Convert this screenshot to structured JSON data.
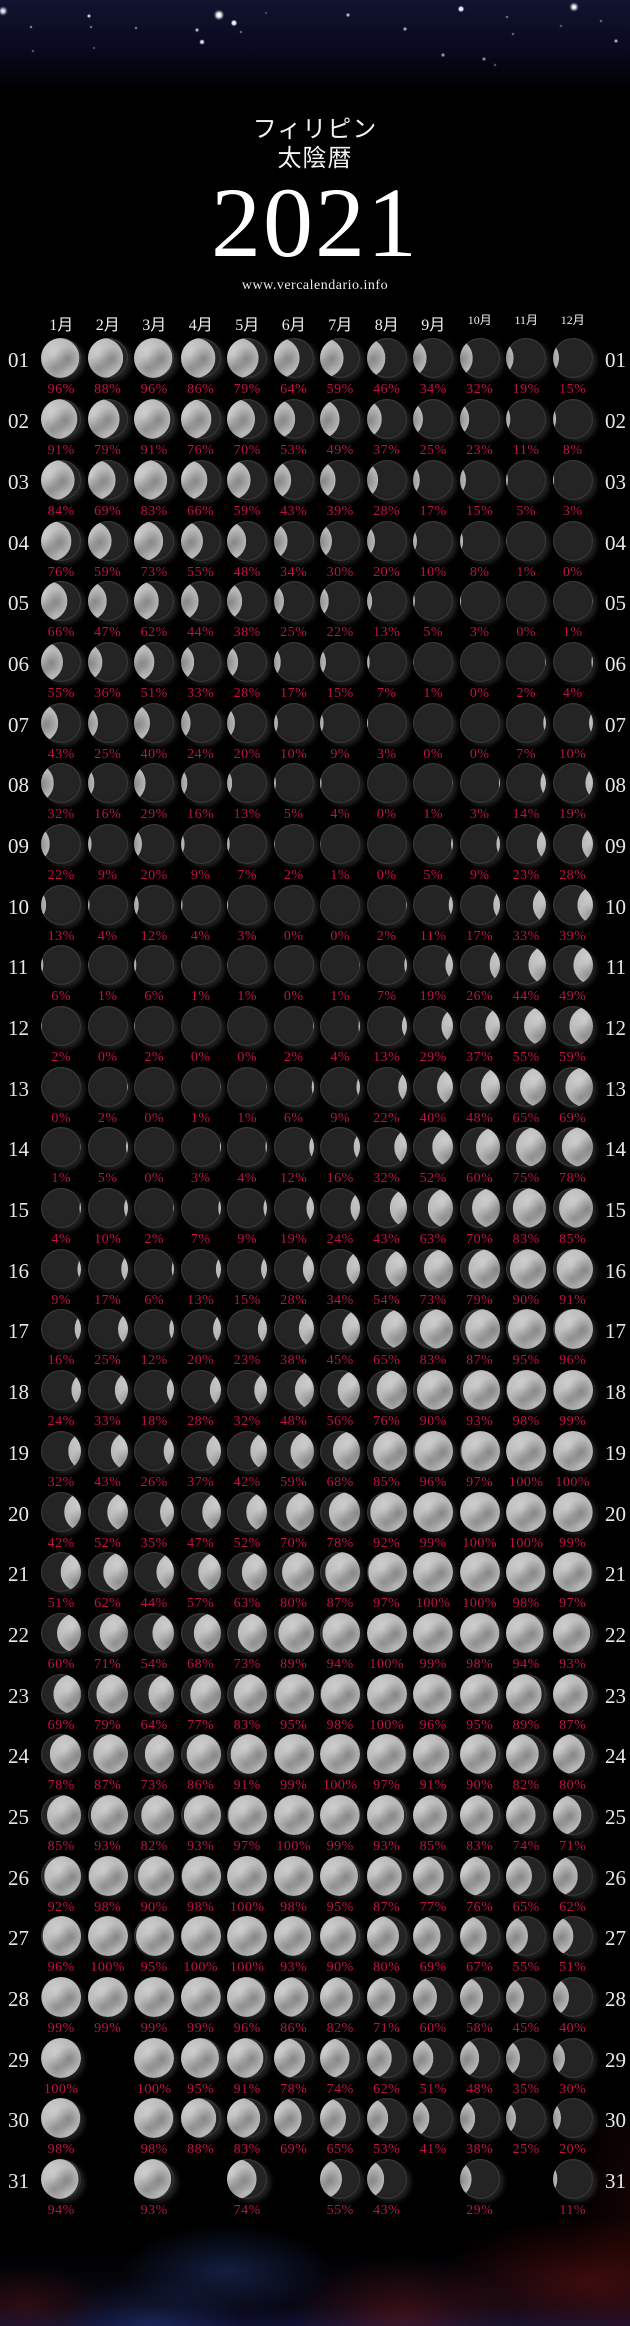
{
  "header": {
    "title_line1": "フィリピン",
    "title_line2": "太陰暦",
    "year": "2021",
    "website": "www.vercalendario.info"
  },
  "months": [
    "1月",
    "2月",
    "3月",
    "4月",
    "5月",
    "6月",
    "7月",
    "8月",
    "9月",
    "10月",
    "11月",
    "12月"
  ],
  "days": [
    {
      "day": "01",
      "values": [
        96,
        88,
        96,
        86,
        79,
        64,
        59,
        46,
        34,
        32,
        19,
        15
      ]
    },
    {
      "day": "02",
      "values": [
        91,
        79,
        91,
        76,
        70,
        53,
        49,
        37,
        25,
        23,
        11,
        8
      ]
    },
    {
      "day": "03",
      "values": [
        84,
        69,
        83,
        66,
        59,
        43,
        39,
        28,
        17,
        15,
        5,
        3
      ]
    },
    {
      "day": "04",
      "values": [
        76,
        59,
        73,
        55,
        48,
        34,
        30,
        20,
        10,
        8,
        1,
        0
      ]
    },
    {
      "day": "05",
      "values": [
        66,
        47,
        62,
        44,
        38,
        25,
        22,
        13,
        5,
        3,
        0,
        1
      ]
    },
    {
      "day": "06",
      "values": [
        55,
        36,
        51,
        33,
        28,
        17,
        15,
        7,
        1,
        0,
        2,
        4
      ]
    },
    {
      "day": "07",
      "values": [
        43,
        25,
        40,
        24,
        20,
        10,
        9,
        3,
        0,
        0,
        7,
        10
      ]
    },
    {
      "day": "08",
      "values": [
        32,
        16,
        29,
        16,
        13,
        5,
        4,
        0,
        1,
        3,
        14,
        19
      ]
    },
    {
      "day": "09",
      "values": [
        22,
        9,
        20,
        9,
        7,
        2,
        1,
        0,
        5,
        9,
        23,
        28
      ]
    },
    {
      "day": "10",
      "values": [
        13,
        4,
        12,
        4,
        3,
        0,
        0,
        2,
        11,
        17,
        33,
        39
      ]
    },
    {
      "day": "11",
      "values": [
        6,
        1,
        6,
        1,
        1,
        0,
        1,
        7,
        19,
        26,
        44,
        49
      ]
    },
    {
      "day": "12",
      "values": [
        2,
        0,
        2,
        0,
        0,
        2,
        4,
        13,
        29,
        37,
        55,
        59
      ]
    },
    {
      "day": "13",
      "values": [
        0,
        2,
        0,
        1,
        1,
        6,
        9,
        22,
        40,
        48,
        65,
        69
      ]
    },
    {
      "day": "14",
      "values": [
        1,
        5,
        0,
        3,
        4,
        12,
        16,
        32,
        52,
        60,
        75,
        78
      ]
    },
    {
      "day": "15",
      "values": [
        4,
        10,
        2,
        7,
        9,
        19,
        24,
        43,
        63,
        70,
        83,
        85
      ]
    },
    {
      "day": "16",
      "values": [
        9,
        17,
        6,
        13,
        15,
        28,
        34,
        54,
        73,
        79,
        90,
        91
      ]
    },
    {
      "day": "17",
      "values": [
        16,
        25,
        12,
        20,
        23,
        38,
        45,
        65,
        83,
        87,
        95,
        96
      ]
    },
    {
      "day": "18",
      "values": [
        24,
        33,
        18,
        28,
        32,
        48,
        56,
        76,
        90,
        93,
        98,
        99
      ]
    },
    {
      "day": "19",
      "values": [
        32,
        43,
        26,
        37,
        42,
        59,
        68,
        85,
        96,
        97,
        100,
        100
      ]
    },
    {
      "day": "20",
      "values": [
        42,
        52,
        35,
        47,
        52,
        70,
        78,
        92,
        99,
        100,
        100,
        99
      ]
    },
    {
      "day": "21",
      "values": [
        51,
        62,
        44,
        57,
        63,
        80,
        87,
        97,
        100,
        100,
        98,
        97
      ]
    },
    {
      "day": "22",
      "values": [
        60,
        71,
        54,
        68,
        73,
        89,
        94,
        100,
        99,
        98,
        94,
        93
      ]
    },
    {
      "day": "23",
      "values": [
        69,
        79,
        64,
        77,
        83,
        95,
        98,
        100,
        96,
        95,
        89,
        87
      ]
    },
    {
      "day": "24",
      "values": [
        78,
        87,
        73,
        86,
        91,
        99,
        100,
        97,
        91,
        90,
        82,
        80
      ]
    },
    {
      "day": "25",
      "values": [
        85,
        93,
        82,
        93,
        97,
        100,
        99,
        93,
        85,
        83,
        74,
        71
      ]
    },
    {
      "day": "26",
      "values": [
        92,
        98,
        90,
        98,
        100,
        98,
        95,
        87,
        77,
        76,
        65,
        62
      ]
    },
    {
      "day": "27",
      "values": [
        96,
        100,
        95,
        100,
        100,
        93,
        90,
        80,
        69,
        67,
        55,
        51
      ]
    },
    {
      "day": "28",
      "values": [
        99,
        99,
        99,
        99,
        96,
        86,
        82,
        71,
        60,
        58,
        45,
        40
      ]
    },
    {
      "day": "29",
      "values": [
        100,
        null,
        100,
        95,
        91,
        78,
        74,
        62,
        51,
        48,
        35,
        30
      ]
    },
    {
      "day": "30",
      "values": [
        98,
        null,
        98,
        88,
        83,
        69,
        65,
        53,
        41,
        38,
        25,
        20
      ]
    },
    {
      "day": "31",
      "values": [
        94,
        null,
        93,
        null,
        74,
        null,
        55,
        43,
        null,
        29,
        null,
        11
      ]
    }
  ],
  "colors": {
    "percent_text": "#c01245",
    "moon_lit": "#b7b7b7",
    "moon_dark": "#1e1e1e",
    "day_label": "#e8e8e8"
  }
}
